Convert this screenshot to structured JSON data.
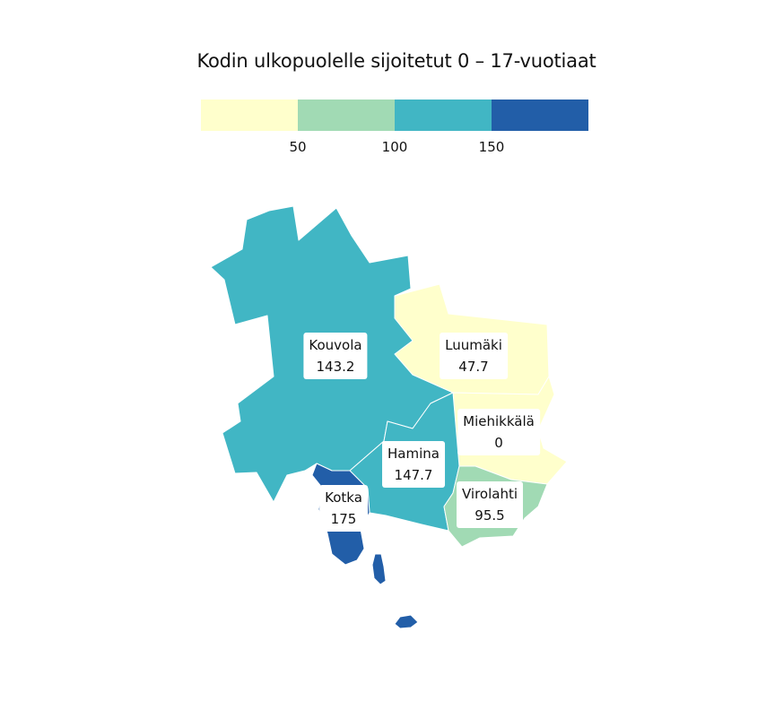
{
  "title": "Kodin ulkopuolelle sijoitetut 0 – 17-vuotiaat",
  "legend": {
    "colors": [
      "#ffffcc",
      "#a1dab4",
      "#41b6c4",
      "#225ea8"
    ],
    "ticks": [
      "50",
      "100",
      "150"
    ]
  },
  "regions": [
    {
      "name": "Kouvola",
      "value": "143.2",
      "color": "#41b6c4"
    },
    {
      "name": "Luumäki",
      "value": "47.7",
      "color": "#ffffcc"
    },
    {
      "name": "Miehikkälä",
      "value": "0",
      "color": "#ffffcc"
    },
    {
      "name": "Hamina",
      "value": "147.7",
      "color": "#41b6c4"
    },
    {
      "name": "Virolahti",
      "value": "95.5",
      "color": "#a1dab4"
    },
    {
      "name": "Kotka",
      "value": "175",
      "color": "#225ea8"
    }
  ]
}
